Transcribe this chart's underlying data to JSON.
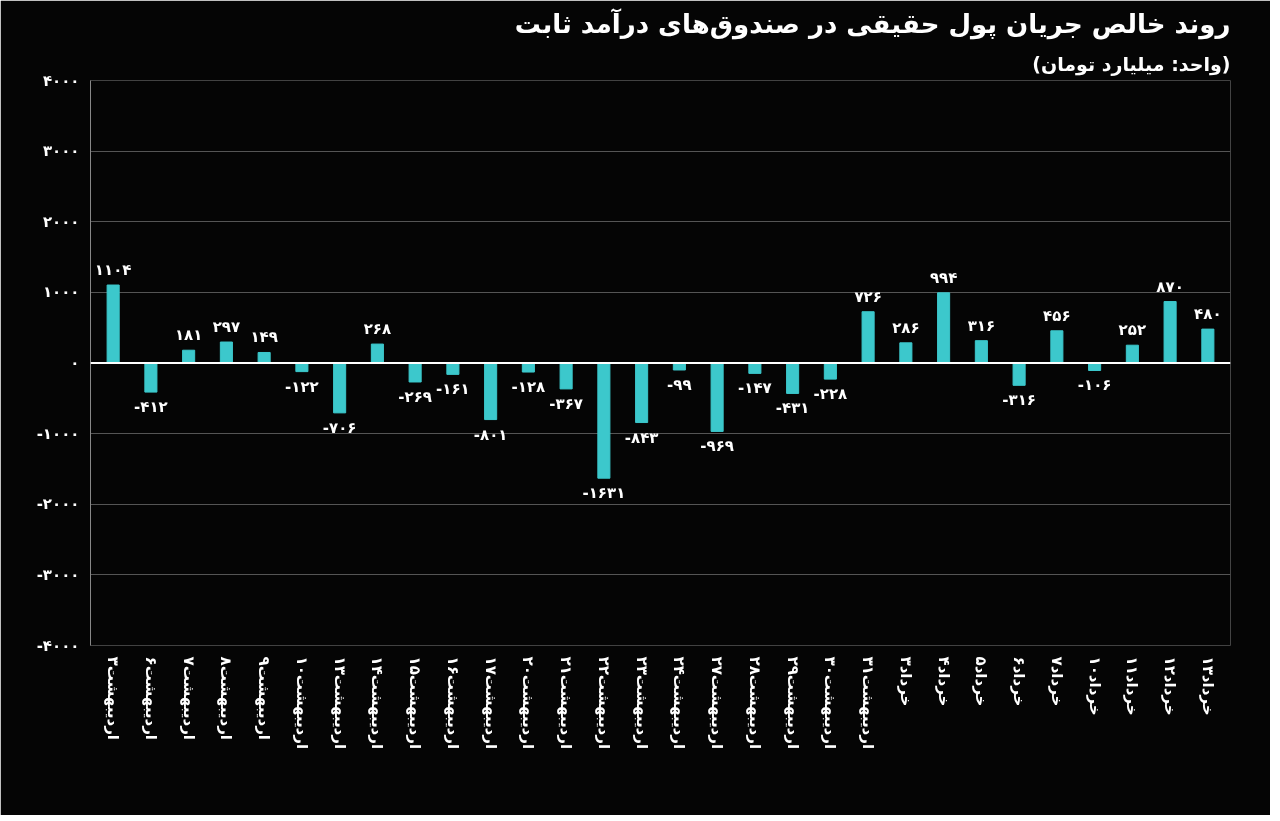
{
  "chart_data": {
    "type": "bar",
    "title": "روند خالص جریان پول حقیقی در صندوق‌های درآمد ثابت",
    "subtitle": "(واحد: میلیارد تومان)",
    "categories": [
      "اردیبهشت۳",
      "اردیبهشت۶",
      "اردیبهشت۷",
      "اردیبهشت۸",
      "اردیبهشت۹",
      "اردیبهشت۱۰",
      "اردیبهشت۱۳",
      "اردیبهشت۱۴",
      "اردیبهشت۱۵",
      "اردیبهشت۱۶",
      "اردیبهشت۱۷",
      "اردیبهشت۲۰",
      "اردیبهشت۲۱",
      "اردیبهشت۲۲",
      "اردیبهشت۲۳",
      "اردیبهشت۲۴",
      "اردیبهشت۲۷",
      "اردیبهشت۲۸",
      "اردیبهشت۲۹",
      "اردیبهشت۳۰",
      "اردیبهشت۳۱",
      "خرداد۳",
      "خرداد۴",
      "خرداد۵",
      "خرداد۶",
      "خرداد۷",
      "خرداد۱۰",
      "خرداد۱۱",
      "خرداد۱۲",
      "خرداد۱۳"
    ],
    "values": [
      1104,
      -412,
      181,
      297,
      149,
      -122,
      -706,
      268,
      -269,
      -161,
      -801,
      -128,
      -367,
      -1631,
      -843,
      -99,
      -969,
      -147,
      -431,
      -228,
      726,
      286,
      994,
      316,
      -316,
      456,
      -106,
      252,
      870,
      480
    ],
    "value_labels": [
      "۱۱۰۴",
      "-۴۱۲",
      "۱۸۱",
      "۲۹۷",
      "۱۴۹",
      "-۱۲۲",
      "-۷۰۶",
      "۲۶۸",
      "-۲۶۹",
      "-۱۶۱",
      "-۸۰۱",
      "-۱۲۸",
      "-۳۶۷",
      "-۱۶۳۱",
      "-۸۴۳",
      "-۹۹",
      "-۹۶۹",
      "-۱۴۷",
      "-۴۳۱",
      "-۲۲۸",
      "۷۲۶",
      "۲۸۶",
      "۹۹۴",
      "۳۱۶",
      "-۳۱۶",
      "۴۵۶",
      "-۱۰۶",
      "۲۵۲",
      "۸۷۰",
      "۴۸۰"
    ],
    "color": "#3cc8cc",
    "ylim": [
      -4000,
      4000
    ],
    "yticks": [
      {
        "value": 4000,
        "label": "۴۰۰۰"
      },
      {
        "value": 3000,
        "label": "۳۰۰۰"
      },
      {
        "value": 2000,
        "label": "۲۰۰۰"
      },
      {
        "value": 1000,
        "label": "۱۰۰۰"
      },
      {
        "value": 0,
        "label": "۰"
      },
      {
        "value": -1000,
        "label": "-۱۰۰۰"
      },
      {
        "value": -2000,
        "label": "-۲۰۰۰"
      },
      {
        "value": -3000,
        "label": "-۳۰۰۰"
      },
      {
        "value": -4000,
        "label": "-۴۰۰۰"
      }
    ],
    "grid": "y"
  }
}
